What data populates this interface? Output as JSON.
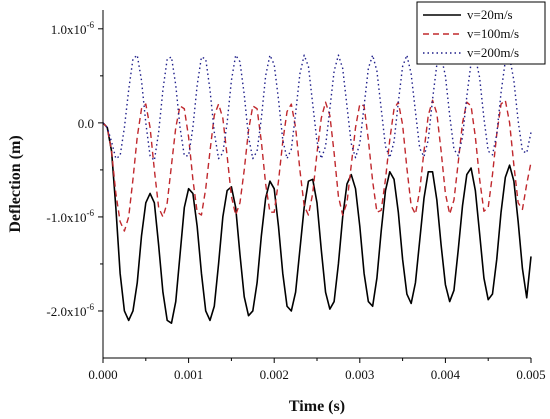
{
  "chart_data": {
    "type": "line",
    "xlabel": "Time (s)",
    "ylabel": "Deflection (m)",
    "xlim": [
      0,
      0.005
    ],
    "ylim": [
      -2.5e-06,
      1.2e-06
    ],
    "x_ticks": [
      {
        "value": 0.0,
        "label": "0.000"
      },
      {
        "value": 0.001,
        "label": "0.001"
      },
      {
        "value": 0.002,
        "label": "0.002"
      },
      {
        "value": 0.003,
        "label": "0.003"
      },
      {
        "value": 0.004,
        "label": "0.004"
      },
      {
        "value": 0.005,
        "label": "0.005"
      }
    ],
    "y_ticks": [
      {
        "value": 1e-06,
        "base": "1.0x10",
        "exp": "-6"
      },
      {
        "value": 0.0,
        "base": "0.0",
        "exp": ""
      },
      {
        "value": -1e-06,
        "base": "-1.0x10",
        "exp": "-6"
      },
      {
        "value": -2e-06,
        "base": "-2.0x10",
        "exp": "-6"
      }
    ],
    "grid": false,
    "legend_position": "top-right",
    "series": [
      {
        "name": "v=20m/s",
        "color": "#000000",
        "dash": "solid",
        "x": [
          0,
          5e-05,
          0.0001,
          0.00015,
          0.0002,
          0.00025,
          0.0003,
          0.00035,
          0.0004,
          0.00045,
          0.0005,
          0.00055,
          0.0006,
          0.00065,
          0.0007,
          0.00075,
          0.0008,
          0.00085,
          0.0009,
          0.00095,
          0.001,
          0.00105,
          0.0011,
          0.00115,
          0.0012,
          0.00125,
          0.0013,
          0.00135,
          0.0014,
          0.00145,
          0.0015,
          0.00155,
          0.0016,
          0.00165,
          0.0017,
          0.00175,
          0.0018,
          0.00185,
          0.0019,
          0.00195,
          0.002,
          0.00205,
          0.0021,
          0.00215,
          0.0022,
          0.00225,
          0.0023,
          0.00235,
          0.0024,
          0.00245,
          0.0025,
          0.00255,
          0.0026,
          0.00265,
          0.0027,
          0.00275,
          0.0028,
          0.00285,
          0.0029,
          0.00295,
          0.003,
          0.00305,
          0.0031,
          0.00315,
          0.0032,
          0.00325,
          0.0033,
          0.00335,
          0.0034,
          0.00345,
          0.0035,
          0.00355,
          0.0036,
          0.00365,
          0.0037,
          0.00375,
          0.0038,
          0.00385,
          0.0039,
          0.00395,
          0.004,
          0.00405,
          0.0041,
          0.00415,
          0.0042,
          0.00425,
          0.0043,
          0.00435,
          0.0044,
          0.00445,
          0.0045,
          0.00455,
          0.0046,
          0.00465,
          0.0047,
          0.00475,
          0.0048,
          0.00485,
          0.0049,
          0.00495,
          0.005
        ],
        "y": [
          0,
          -5e-08,
          -3e-07,
          -9e-07,
          -1.6e-06,
          -2e-06,
          -2.1e-06,
          -2e-06,
          -1.7e-06,
          -1.2e-06,
          -8.5e-07,
          -7.5e-07,
          -8.5e-07,
          -1.3e-06,
          -1.8e-06,
          -2.1e-06,
          -2.13e-06,
          -1.9e-06,
          -1.4e-06,
          -9e-07,
          -7e-07,
          -7.5e-07,
          -1.1e-06,
          -1.6e-06,
          -2e-06,
          -2.1e-06,
          -1.95e-06,
          -1.5e-06,
          -1e-06,
          -7.2e-07,
          -6.8e-07,
          -9e-07,
          -1.4e-06,
          -1.85e-06,
          -2.05e-06,
          -2e-06,
          -1.7e-06,
          -1.2e-06,
          -8e-07,
          -6.2e-07,
          -7e-07,
          -1.1e-06,
          -1.6e-06,
          -1.95e-06,
          -2e-06,
          -1.8e-06,
          -1.35e-06,
          -9e-07,
          -6.2e-07,
          -6e-07,
          -8.5e-07,
          -1.35e-06,
          -1.8e-06,
          -1.98e-06,
          -1.9e-06,
          -1.5e-06,
          -1e-06,
          -6.5e-07,
          -5.5e-07,
          -7e-07,
          -1.1e-06,
          -1.6e-06,
          -1.9e-06,
          -1.95e-06,
          -1.65e-06,
          -1.15e-06,
          -7.2e-07,
          -5.2e-07,
          -6e-07,
          -9.5e-07,
          -1.45e-06,
          -1.82e-06,
          -1.92e-06,
          -1.7e-06,
          -1.25e-06,
          -8e-07,
          -5.2e-07,
          -5.2e-07,
          -8.2e-07,
          -1.3e-06,
          -1.72e-06,
          -1.9e-06,
          -1.78e-06,
          -1.35e-06,
          -8.8e-07,
          -5.5e-07,
          -4.8e-07,
          -7.2e-07,
          -1.18e-06,
          -1.65e-06,
          -1.88e-06,
          -1.82e-06,
          -1.45e-06,
          -9.5e-07,
          -5.8e-07,
          -4.5e-07,
          -6.2e-07,
          -1.05e-06,
          -1.55e-06,
          -1.86e-06,
          -1.42e-06
        ]
      },
      {
        "name": "v=100m/s",
        "color": "#c0282d",
        "dash": "dashed",
        "x": [
          0,
          5e-05,
          0.0001,
          0.00015,
          0.0002,
          0.00025,
          0.0003,
          0.00035,
          0.0004,
          0.00045,
          0.0005,
          0.00055,
          0.0006,
          0.00065,
          0.0007,
          0.00075,
          0.0008,
          0.00085,
          0.0009,
          0.00095,
          0.001,
          0.00105,
          0.0011,
          0.00115,
          0.0012,
          0.00125,
          0.0013,
          0.00135,
          0.0014,
          0.00145,
          0.0015,
          0.00155,
          0.0016,
          0.00165,
          0.0017,
          0.00175,
          0.0018,
          0.00185,
          0.0019,
          0.00195,
          0.002,
          0.00205,
          0.0021,
          0.00215,
          0.0022,
          0.00225,
          0.0023,
          0.00235,
          0.0024,
          0.00245,
          0.0025,
          0.00255,
          0.0026,
          0.00265,
          0.0027,
          0.00275,
          0.0028,
          0.00285,
          0.0029,
          0.00295,
          0.003,
          0.00305,
          0.0031,
          0.00315,
          0.0032,
          0.00325,
          0.0033,
          0.00335,
          0.0034,
          0.00345,
          0.0035,
          0.00355,
          0.0036,
          0.00365,
          0.0037,
          0.00375,
          0.0038,
          0.00385,
          0.0039,
          0.00395,
          0.004,
          0.00405,
          0.0041,
          0.00415,
          0.0042,
          0.00425,
          0.0043,
          0.00435,
          0.0044,
          0.00445,
          0.0045,
          0.00455,
          0.0046,
          0.00465,
          0.0047,
          0.00475,
          0.0048,
          0.00485,
          0.0049,
          0.00495,
          0.005
        ],
        "y": [
          0,
          -5e-08,
          -3e-07,
          -7.5e-07,
          -1.05e-06,
          -1.15e-06,
          -1e-06,
          -6e-07,
          -1.5e-07,
          1.5e-07,
          2e-07,
          -5e-08,
          -5e-07,
          -9e-07,
          -1e-06,
          -8.5e-07,
          -4.5e-07,
          -5e-08,
          1.8e-07,
          1.5e-07,
          -1.5e-07,
          -6e-07,
          -9.5e-07,
          -9.8e-07,
          -7e-07,
          -3e-07,
          8e-08,
          2e-07,
          5e-08,
          -3.5e-07,
          -7.8e-07,
          -9.8e-07,
          -8.5e-07,
          -5e-07,
          -8e-08,
          1.8e-07,
          1.5e-07,
          -2e-07,
          -6.5e-07,
          -9.5e-07,
          -9.5e-07,
          -6.2e-07,
          -2e-07,
          1.2e-07,
          2e-07,
          -5e-08,
          -5e-07,
          -8.8e-07,
          -9.8e-07,
          -7.5e-07,
          -3.2e-07,
          5e-08,
          2.2e-07,
          8e-08,
          -3.2e-07,
          -7.8e-07,
          -9.8e-07,
          -8.5e-07,
          -4.5e-07,
          -5e-08,
          2e-07,
          1.8e-07,
          -1.8e-07,
          -6.2e-07,
          -9.5e-07,
          -9.3e-07,
          -6e-07,
          -1.8e-07,
          1.5e-07,
          2.2e-07,
          -2e-08,
          -4.8e-07,
          -8.8e-07,
          -9.7e-07,
          -7.2e-07,
          -3e-07,
          8e-08,
          2.4e-07,
          1e-07,
          -3e-07,
          -7.5e-07,
          -9.7e-07,
          -8.2e-07,
          -4.2e-07,
          0.0,
          2.2e-07,
          1.8e-07,
          -1.5e-07,
          -6e-07,
          -9.4e-07,
          -9e-07,
          -5.5e-07,
          -1.2e-07,
          2e-07,
          2.4e-07,
          0.0,
          -4.5e-07,
          -8.5e-07,
          -9.2e-07,
          -6.5e-07,
          -4.2e-07
        ]
      },
      {
        "name": "v=200m/s",
        "color": "#1f1f8a",
        "dash": "dotted",
        "x": [
          0,
          5e-05,
          0.0001,
          0.00015,
          0.0002,
          0.00025,
          0.0003,
          0.00035,
          0.0004,
          0.00045,
          0.0005,
          0.00055,
          0.0006,
          0.00065,
          0.0007,
          0.00075,
          0.0008,
          0.00085,
          0.0009,
          0.00095,
          0.001,
          0.00105,
          0.0011,
          0.00115,
          0.0012,
          0.00125,
          0.0013,
          0.00135,
          0.0014,
          0.00145,
          0.0015,
          0.00155,
          0.0016,
          0.00165,
          0.0017,
          0.00175,
          0.0018,
          0.00185,
          0.0019,
          0.00195,
          0.002,
          0.00205,
          0.0021,
          0.00215,
          0.0022,
          0.00225,
          0.0023,
          0.00235,
          0.0024,
          0.00245,
          0.0025,
          0.00255,
          0.0026,
          0.00265,
          0.0027,
          0.00275,
          0.0028,
          0.00285,
          0.0029,
          0.00295,
          0.003,
          0.00305,
          0.0031,
          0.00315,
          0.0032,
          0.00325,
          0.0033,
          0.00335,
          0.0034,
          0.00345,
          0.0035,
          0.00355,
          0.0036,
          0.00365,
          0.0037,
          0.00375,
          0.0038,
          0.00385,
          0.0039,
          0.00395,
          0.004,
          0.00405,
          0.0041,
          0.00415,
          0.0042,
          0.00425,
          0.0043,
          0.00435,
          0.0044,
          0.00445,
          0.0045,
          0.00455,
          0.0046,
          0.00465,
          0.0047,
          0.00475,
          0.0048,
          0.00485,
          0.0049,
          0.00495,
          0.005
        ],
        "y": [
          0,
          -5e-08,
          -2e-07,
          -3.8e-07,
          -3.5e-07,
          -5e-08,
          3.5e-07,
          6.8e-07,
          7.2e-07,
          4.5e-07,
          0.0,
          -3.5e-07,
          -4e-07,
          -1e-07,
          3.5e-07,
          6.8e-07,
          7e-07,
          4e-07,
          -5e-08,
          -3.5e-07,
          -3.5e-07,
          -5e-08,
          4e-07,
          7e-07,
          6.8e-07,
          3.5e-07,
          -1e-07,
          -3.8e-07,
          -3.2e-07,
          0.0,
          4.5e-07,
          7.2e-07,
          6.5e-07,
          3e-07,
          -1.5e-07,
          -3.8e-07,
          -3e-07,
          5e-08,
          5e-07,
          7.2e-07,
          6.2e-07,
          2.5e-07,
          -1.8e-07,
          -3.8e-07,
          -2.8e-07,
          1e-07,
          5.2e-07,
          7.2e-07,
          6e-07,
          2e-07,
          -2e-07,
          -3.8e-07,
          -2.5e-07,
          1.5e-07,
          5.5e-07,
          7.2e-07,
          5.8e-07,
          1.8e-07,
          -2.2e-07,
          -3.7e-07,
          -2.2e-07,
          1.8e-07,
          5.8e-07,
          7.2e-07,
          5.5e-07,
          1.5e-07,
          -2.5e-07,
          -3.7e-07,
          -2e-07,
          2.2e-07,
          6e-07,
          7.2e-07,
          5.2e-07,
          1.2e-07,
          -2.7e-07,
          -3.6e-07,
          -1.8e-07,
          2.5e-07,
          6.2e-07,
          7.1e-07,
          5e-07,
          8e-08,
          -2.8e-07,
          -3.5e-07,
          -1.5e-07,
          2.8e-07,
          6.4e-07,
          7e-07,
          4.8e-07,
          5e-08,
          -3e-07,
          -3.4e-07,
          -1.2e-07,
          3.2e-07,
          6.6e-07,
          7e-07,
          4.5e-07,
          2e-08,
          -3e-07,
          -3.2e-07,
          -1e-07
        ]
      }
    ]
  }
}
